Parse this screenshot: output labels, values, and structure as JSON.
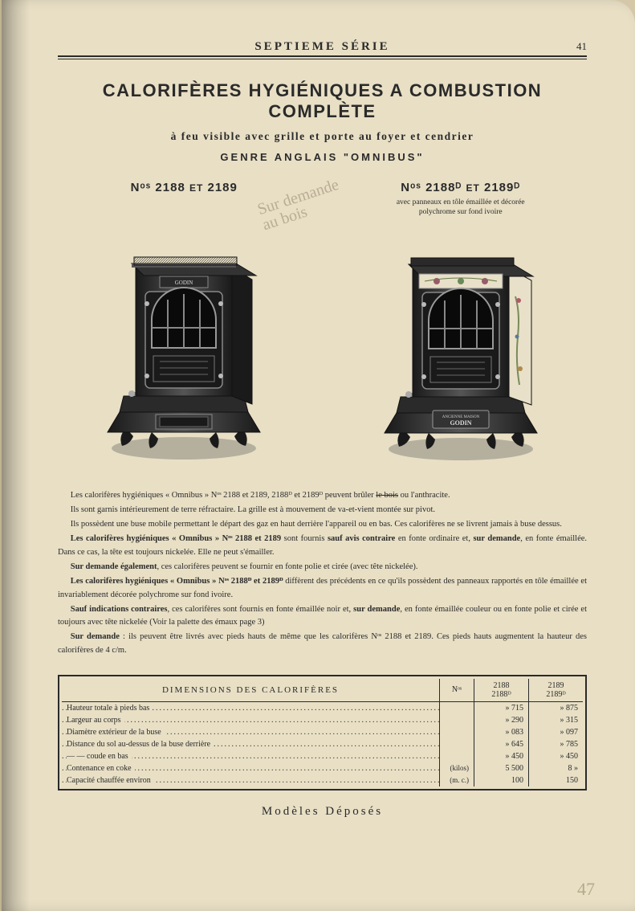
{
  "header": {
    "series_title": "SEPTIEME SÉRIE",
    "page_number": "41"
  },
  "titles": {
    "main": "CALORIFÈRES HYGIÉNIQUES A COMBUSTION COMPLÈTE",
    "sub1": "à feu visible avec grille et porte au foyer et cendrier",
    "sub2": "GENRE ANGLAIS \"OMNIBUS\""
  },
  "handwriting": "Sur demande\nau bois",
  "products": [
    {
      "heading_prefix": "Nᵒˢ",
      "heading_main": "2188",
      "heading_and": "ET",
      "heading_main2": "2189",
      "note": "",
      "brand": "GODIN"
    },
    {
      "heading_prefix": "Nᵒˢ",
      "heading_main": "2188ᴰ",
      "heading_and": "ET",
      "heading_main2": "2189ᴰ",
      "note": "avec panneaux en tôle émaillée et décorée\npolychrome sur fond ivoire",
      "brand": "GODIN"
    }
  ],
  "body_paragraphs": [
    "Les calorifères hygiéniques « Omnibus » Nᵒˢ 2188 et 2189, 2188ᴰ et 2189ᴰ peuvent brûler <span class=\"strike\">le bois</span> ou l'anthracite.",
    "Ils sont garnis intérieurement de terre réfractaire. La grille est à mouvement de va-et-vient montée sur pivot.",
    "Ils possèdent une buse mobile permettant le départ des gaz en haut derrière l'appareil ou en bas. Ces calorifères ne se livrent jamais à buse dessus.",
    "<b>Les calorifères hygiéniques « Omnibus » Nᵒˢ 2188 et 2189</b> sont fournis <b>sauf avis contraire</b> en fonte ordinaire et, <b>sur demande</b>, en fonte émaillée. Dans ce cas, la tête est toujours nickelée. Elle ne peut s'émailler.",
    "<b>Sur demande également</b>, ces calorifères peuvent se fournir en fonte polie et cirée (avec tête nickelée).",
    "<b>Les calorifères hygiéniques « Omnibus » Nᵒˢ 2188ᴰ et 2189ᴰ</b> diffèrent des précédents en ce qu'ils possèdent des panneaux rapportés en tôle émaillée et invariablement décorée polychrome sur fond ivoire.",
    "<b>Sauf indications contraires</b>, ces calorifères sont fournis en fonte émaillée noir et, <b>sur demande</b>, en fonte émaillée couleur ou en fonte polie et cirée et toujours avec tête nickelée (Voir la palette des émaux page 3)",
    "<b>Sur demande</b> : ils peuvent être livrés avec pieds hauts de même que les calorifères Nᵒˢ 2188 et 2189. Ces pieds hauts augmentent la hauteur des calorifères de 4 c/m."
  ],
  "table": {
    "title": "DIMENSIONS DES CALORIFÈRES",
    "nos_label": "Nᵒˢ",
    "col_headers": [
      "2188\n2188ᴰ",
      "2189\n2189ᴰ"
    ],
    "rows": [
      {
        "label": "Hauteur totale à pieds bas",
        "unit": "",
        "v1": "» 715",
        "v2": "» 875"
      },
      {
        "label": "Largeur au corps",
        "unit": "",
        "v1": "» 290",
        "v2": "» 315"
      },
      {
        "label": "Diamètre extérieur de la buse",
        "unit": "",
        "v1": "» 083",
        "v2": "» 097"
      },
      {
        "label": "Distance du sol au-dessus de la buse derrière",
        "unit": "",
        "v1": "» 645",
        "v2": "» 785"
      },
      {
        "label": "—          —   coude en bas",
        "unit": "",
        "v1": "» 450",
        "v2": "» 450"
      },
      {
        "label": "Contenance en coke",
        "unit": "(kilos)",
        "v1": "5 500",
        "v2": "8 »"
      },
      {
        "label": "Capacité chauffée environ",
        "unit": "(m. c.)",
        "v1": "100",
        "v2": "150"
      }
    ]
  },
  "footer": "Modèles Déposés",
  "pencil": "47",
  "colors": {
    "page_bg": "#e8dfc5",
    "ink": "#2a2a2a",
    "faint": "rgba(100,80,60,0.35)"
  }
}
